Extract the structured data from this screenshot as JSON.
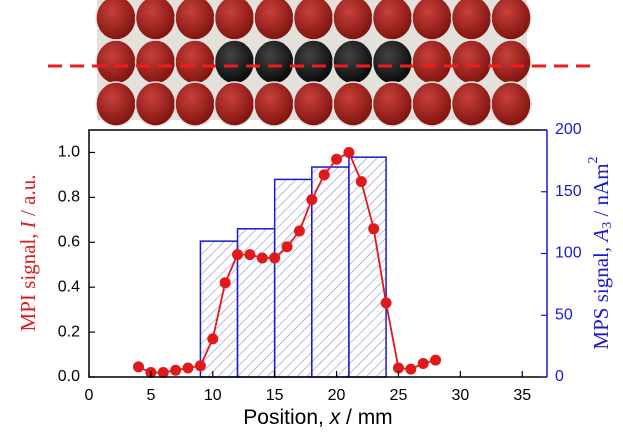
{
  "chart_data": {
    "type": "combo",
    "xlabel": [
      "Position, ",
      "x",
      " / mm"
    ],
    "ylabel": [
      "MPI signal, ",
      "I",
      " / a.u."
    ],
    "y2label": [
      "MPS signal, ",
      "A",
      "3",
      " / nAm",
      "2"
    ],
    "xlim": [
      0,
      37
    ],
    "xticks": [
      0,
      5,
      10,
      15,
      20,
      25,
      30,
      35
    ],
    "ylim": [
      0,
      1.1
    ],
    "yticks": [
      {
        "value": 0,
        "label": "0.0"
      },
      {
        "value": 0.2,
        "label": "0.2"
      },
      {
        "value": 0.4,
        "label": "0.4"
      },
      {
        "value": 0.6,
        "label": "0.6"
      },
      {
        "value": 0.8,
        "label": "0.8"
      },
      {
        "value": 1,
        "label": "1.0"
      }
    ],
    "y2lim": [
      0,
      200
    ],
    "y2ticks": [
      0,
      50,
      100,
      150,
      200
    ],
    "series": [
      {
        "type": "line",
        "color": "#e01a1a",
        "x": [
          4,
          5,
          6,
          7,
          8,
          9,
          10,
          11,
          12,
          13,
          14,
          15,
          16,
          17,
          18,
          19,
          20,
          21,
          22,
          23,
          24,
          25,
          26,
          27,
          28
        ],
        "values": [
          0.045,
          0.02,
          0.02,
          0.03,
          0.04,
          0.05,
          0.17,
          0.42,
          0.545,
          0.545,
          0.53,
          0.53,
          0.58,
          0.65,
          0.79,
          0.9,
          0.97,
          1.0,
          0.87,
          0.66,
          0.33,
          0.04,
          0.035,
          0.06,
          0.075
        ]
      },
      {
        "type": "histogram",
        "axis": "y2",
        "color": "#1a1acc",
        "bins": [
          9,
          12,
          15,
          18,
          21,
          24
        ],
        "values": [
          110,
          120,
          160,
          170,
          178
        ]
      }
    ]
  }
}
